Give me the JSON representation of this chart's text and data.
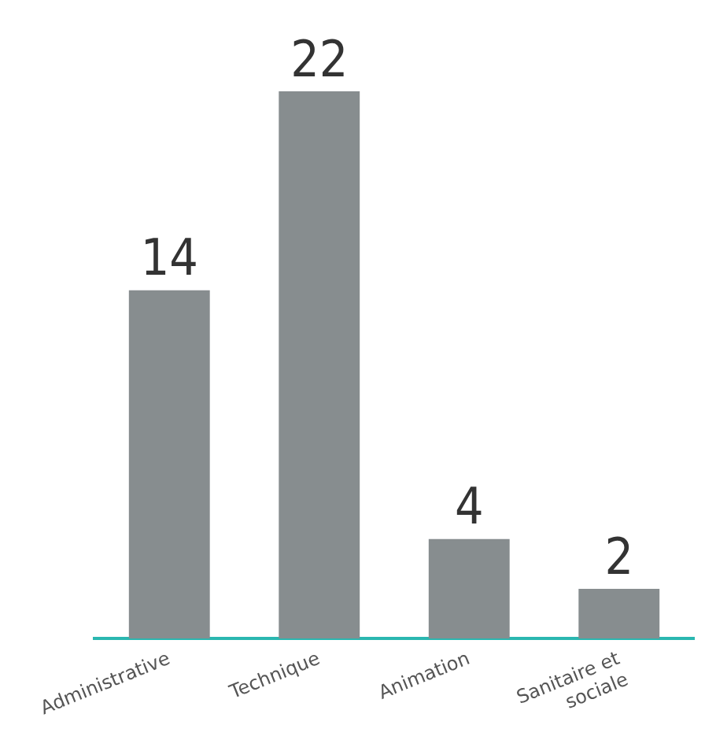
{
  "chart_data": {
    "type": "bar",
    "categories": [
      "Administrative",
      "Technique",
      "Animation",
      "Sanitaire et sociale"
    ],
    "values": [
      14,
      22,
      4,
      2
    ],
    "color": "#878d8f",
    "data_labels": true,
    "grid": false,
    "legend": false
  }
}
